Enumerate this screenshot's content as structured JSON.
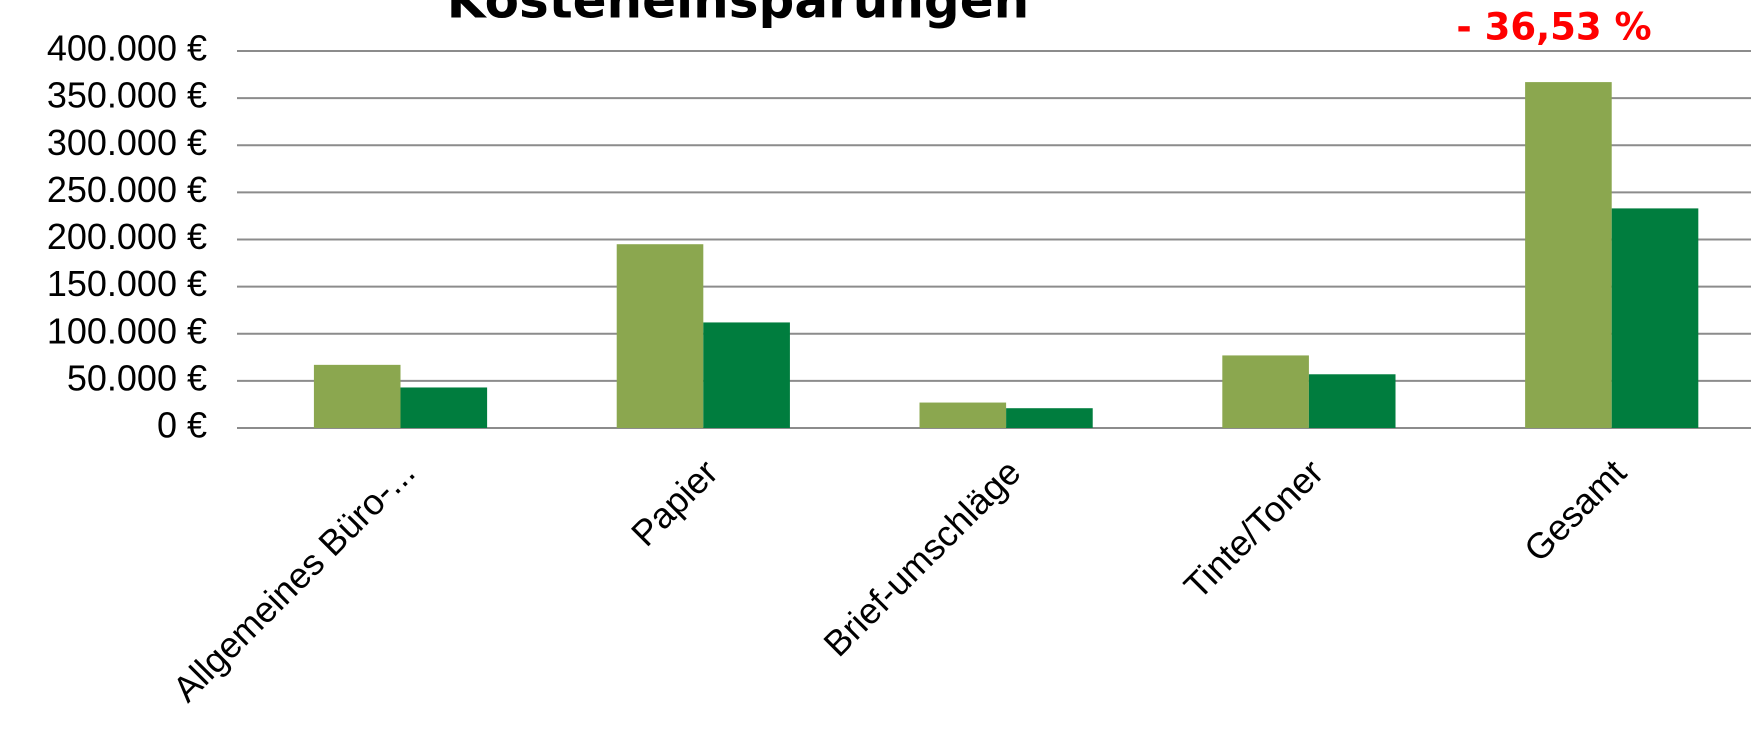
{
  "chart_data": {
    "type": "bar",
    "title": "Kosteneinsparungen",
    "annotation": "- 36,53 %",
    "categories": [
      "Allgemeines Büro-...",
      "Papier",
      "Brief-umschläge",
      "Tinte/Toner",
      "Gesamt"
    ],
    "series": [
      {
        "color": "#8ba74f",
        "values": [
          67000,
          195000,
          27000,
          77000,
          367000
        ]
      },
      {
        "color": "#007d3e",
        "values": [
          43000,
          112000,
          21000,
          57000,
          233000
        ]
      }
    ],
    "ylim": [
      0,
      400000
    ],
    "yticks": [
      {
        "value": 0,
        "label": "0 €"
      },
      {
        "value": 50000,
        "label": "50.000 €"
      },
      {
        "value": 100000,
        "label": "100.000 €"
      },
      {
        "value": 150000,
        "label": "150.000 €"
      },
      {
        "value": 200000,
        "label": "200.000 €"
      },
      {
        "value": 250000,
        "label": "250.000 €"
      },
      {
        "value": 300000,
        "label": "300.000 €"
      },
      {
        "value": 350000,
        "label": "350.000 €"
      },
      {
        "value": 400000,
        "label": "400.000 €"
      }
    ],
    "grid": true
  }
}
